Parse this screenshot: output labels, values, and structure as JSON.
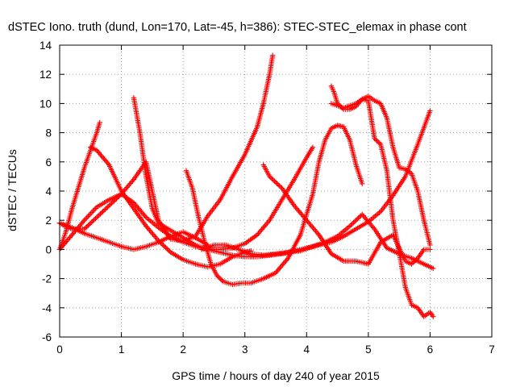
{
  "chart_data": {
    "type": "scatter",
    "title": "dSTEC Iono. truth (dund, Lon=170, Lat=-45, h=386): STEC-STEC_elemax in phase cont",
    "xlabel": "GPS time / hours of day 240 of year 2015",
    "ylabel": "dSTEC  / TECUs",
    "xlim": [
      0,
      7
    ],
    "ylim": [
      -6,
      14
    ],
    "xticks": [
      0,
      1,
      2,
      3,
      4,
      5,
      6,
      7
    ],
    "yticks": [
      -6,
      -4,
      -2,
      0,
      2,
      4,
      6,
      8,
      10,
      12,
      14
    ],
    "grid": true,
    "marker": "plus",
    "color": "#ff0000",
    "series": [
      {
        "x": [
          0.0,
          0.1,
          0.2,
          0.3,
          0.4,
          0.5,
          0.6,
          0.65
        ],
        "y": [
          0.0,
          1.2,
          2.8,
          4.2,
          5.6,
          6.8,
          8.0,
          8.7
        ]
      },
      {
        "x": [
          0.5,
          0.6,
          0.8,
          1.0,
          1.2,
          1.4,
          1.6,
          1.8,
          2.0,
          2.2,
          2.4,
          2.6,
          2.8,
          3.0,
          3.1
        ],
        "y": [
          7.0,
          6.8,
          5.8,
          4.0,
          2.8,
          1.6,
          0.6,
          -0.2,
          -0.7,
          -1.0,
          -1.2,
          -1.0,
          -0.5,
          -0.2,
          -0.1
        ]
      },
      {
        "x": [
          0.0,
          0.2,
          0.4,
          0.6,
          0.8,
          1.0,
          1.2,
          1.4,
          1.6,
          1.8,
          2.0,
          2.2,
          2.4,
          2.6,
          2.8,
          3.0,
          3.2,
          3.3,
          3.4,
          3.45
        ],
        "y": [
          0.0,
          1.0,
          2.0,
          2.9,
          3.4,
          3.8,
          4.8,
          6.0,
          2.0,
          0.7,
          0.6,
          0.9,
          2.3,
          3.4,
          5.0,
          6.5,
          8.4,
          10.0,
          12.0,
          13.3
        ]
      },
      {
        "x": [
          0.0,
          0.2,
          0.4,
          0.6,
          0.8,
          1.0,
          1.2,
          1.4,
          1.6,
          1.8,
          2.0,
          2.2,
          2.4
        ],
        "y": [
          1.8,
          1.5,
          1.1,
          0.8,
          0.5,
          0.2,
          0.0,
          0.2,
          0.5,
          0.9,
          1.2,
          0.8,
          0.3
        ]
      },
      {
        "x": [
          0.0,
          0.2,
          0.4,
          0.6,
          0.8,
          1.0,
          1.2,
          1.4,
          1.6,
          1.8,
          2.0,
          2.2,
          2.4,
          2.6,
          2.8,
          3.0,
          3.2,
          3.4,
          3.6,
          3.8,
          4.0,
          4.2,
          4.4,
          4.6,
          4.8,
          5.0,
          5.2,
          5.4,
          5.6,
          5.8,
          6.0
        ],
        "y": [
          1.8,
          1.4,
          1.4,
          2.2,
          3.0,
          3.8,
          3.2,
          2.2,
          1.5,
          0.9,
          0.5,
          0.2,
          0.0,
          -0.2,
          -0.4,
          -0.5,
          -0.5,
          -0.4,
          -0.3,
          -0.1,
          0.1,
          0.3,
          0.5,
          0.9,
          1.4,
          1.9,
          2.6,
          3.7,
          5.0,
          7.2,
          9.5
        ]
      },
      {
        "x": [
          1.2,
          1.3,
          1.4,
          1.5,
          1.6,
          1.8,
          2.0,
          2.2,
          2.4,
          2.6,
          2.8,
          3.0,
          3.2,
          3.4,
          3.6,
          3.8,
          4.0,
          4.1
        ],
        "y": [
          10.4,
          8.0,
          5.0,
          2.8,
          1.8,
          1.3,
          0.8,
          0.3,
          0.0,
          0.0,
          0.1,
          0.4,
          1.0,
          2.0,
          3.4,
          4.8,
          6.3,
          7.0
        ]
      },
      {
        "x": [
          2.05,
          2.15,
          2.25,
          2.35,
          2.45,
          2.55,
          2.65,
          2.8,
          2.95,
          3.1,
          3.3,
          3.5,
          3.7,
          3.9,
          4.1,
          4.2,
          4.3,
          4.4,
          4.5,
          4.6,
          4.7,
          4.8,
          4.9
        ],
        "y": [
          5.4,
          4.2,
          2.2,
          0.5,
          -1.0,
          -1.8,
          -2.2,
          -2.4,
          -2.3,
          -2.3,
          -2.0,
          -1.6,
          -0.6,
          1.0,
          3.8,
          6.0,
          7.5,
          8.3,
          8.5,
          8.4,
          7.5,
          5.8,
          4.5
        ]
      },
      {
        "x": [
          2.3,
          2.5,
          2.7,
          2.9,
          3.1,
          3.3,
          3.5,
          3.7,
          3.9,
          4.1,
          4.3,
          4.5,
          4.7,
          4.9,
          5.1,
          5.3,
          5.5,
          5.7,
          5.9,
          6.05
        ],
        "y": [
          0.0,
          0.3,
          0.3,
          0.0,
          -0.3,
          -0.4,
          -0.3,
          -0.2,
          -0.1,
          0.2,
          0.5,
          0.9,
          1.6,
          2.4,
          1.4,
          0.1,
          -0.3,
          -0.6,
          -1.0,
          -1.3
        ]
      },
      {
        "x": [
          3.3,
          3.4,
          3.6,
          3.8,
          4.0,
          4.2,
          4.4,
          4.6,
          4.8,
          5.0,
          5.2,
          5.4,
          5.6,
          5.7,
          5.8,
          5.9,
          6.0
        ],
        "y": [
          5.8,
          5.0,
          4.2,
          3.0,
          2.0,
          1.0,
          -0.3,
          -0.8,
          -0.8,
          -1.0,
          0.5,
          1.0,
          -0.8,
          -1.0,
          -0.6,
          0.0,
          0.0
        ]
      },
      {
        "x": [
          4.4,
          4.45,
          4.5,
          4.6,
          4.7,
          4.8,
          4.9,
          5.0,
          5.1,
          5.2,
          5.3,
          5.4,
          5.5,
          5.6,
          5.7,
          5.8,
          5.9,
          6.0,
          6.05
        ],
        "y": [
          11.2,
          10.7,
          10.0,
          9.6,
          9.6,
          9.8,
          10.3,
          10.2,
          7.6,
          7.2,
          5.4,
          2.0,
          -0.2,
          -2.6,
          -3.8,
          -4.0,
          -4.6,
          -4.3,
          -4.6
        ]
      },
      {
        "x": [
          4.4,
          4.6,
          4.8,
          4.9,
          5.0,
          5.1,
          5.2,
          5.3,
          5.4,
          5.5,
          5.6,
          5.7,
          5.8,
          5.9,
          6.0
        ],
        "y": [
          10.0,
          9.7,
          10.0,
          10.3,
          10.5,
          10.2,
          10.0,
          9.0,
          7.0,
          5.6,
          5.5,
          5.2,
          4.0,
          2.0,
          0.3
        ]
      }
    ]
  }
}
